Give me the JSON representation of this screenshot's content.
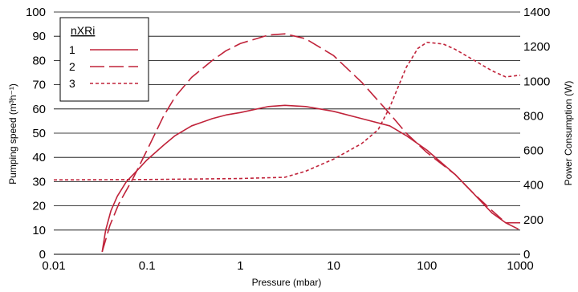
{
  "chart_data": {
    "type": "line",
    "title": "",
    "xlabel": "Pressure (mbar)",
    "ylabel_left": "Pumping speed (m³h⁻¹)",
    "ylabel_right": "Power Consumption (W)",
    "x_scale": "log",
    "xlim": [
      0.01,
      1000
    ],
    "ylim_left": [
      0,
      100
    ],
    "ylim_right": [
      0,
      1400
    ],
    "x_tick_labels": [
      "0.01",
      "0.1",
      "1",
      "10",
      "100",
      "1000"
    ],
    "y_left_tick_labels": [
      "0",
      "10",
      "20",
      "30",
      "40",
      "50",
      "60",
      "70",
      "80",
      "90",
      "100"
    ],
    "y_right_tick_labels": [
      "0",
      "200",
      "400",
      "600",
      "800",
      "1000",
      "1200",
      "1400"
    ],
    "grid": "horizontal",
    "legend": {
      "title": "nXRi",
      "position": "top-left",
      "entries": [
        "1",
        "2",
        "3"
      ]
    },
    "line_color": "#c0233a",
    "series": [
      {
        "name": "1",
        "style": "solid",
        "axis": "left",
        "points": [
          [
            0.033,
            1
          ],
          [
            0.036,
            10
          ],
          [
            0.041,
            18
          ],
          [
            0.048,
            24
          ],
          [
            0.06,
            30
          ],
          [
            0.08,
            35
          ],
          [
            0.1,
            39
          ],
          [
            0.15,
            45
          ],
          [
            0.2,
            49
          ],
          [
            0.3,
            53
          ],
          [
            0.5,
            56
          ],
          [
            0.7,
            57.5
          ],
          [
            1,
            58.5
          ],
          [
            2,
            61
          ],
          [
            3,
            61.5
          ],
          [
            5,
            61
          ],
          [
            10,
            59
          ],
          [
            20,
            56
          ],
          [
            40,
            53
          ],
          [
            60,
            49
          ],
          [
            100,
            43
          ],
          [
            200,
            33
          ],
          [
            300,
            26
          ],
          [
            500,
            17
          ],
          [
            700,
            13
          ],
          [
            1000,
            13
          ]
        ]
      },
      {
        "name": "2",
        "style": "dashed",
        "axis": "left",
        "points": [
          [
            0.033,
            1
          ],
          [
            0.04,
            12
          ],
          [
            0.05,
            21
          ],
          [
            0.07,
            31
          ],
          [
            0.1,
            43
          ],
          [
            0.15,
            57
          ],
          [
            0.2,
            65
          ],
          [
            0.3,
            73
          ],
          [
            0.5,
            80
          ],
          [
            0.7,
            84
          ],
          [
            1,
            87
          ],
          [
            2,
            90.5
          ],
          [
            3,
            91
          ],
          [
            5,
            89
          ],
          [
            10,
            82
          ],
          [
            20,
            71
          ],
          [
            40,
            58
          ],
          [
            60,
            50
          ],
          [
            100,
            42
          ],
          [
            200,
            33
          ],
          [
            300,
            26
          ],
          [
            500,
            18
          ],
          [
            700,
            13
          ],
          [
            1000,
            10
          ]
        ]
      },
      {
        "name": "3",
        "style": "dotted",
        "axis": "right",
        "points": [
          [
            0.01,
            430
          ],
          [
            0.1,
            432
          ],
          [
            1,
            438
          ],
          [
            3,
            445
          ],
          [
            5,
            480
          ],
          [
            10,
            550
          ],
          [
            20,
            640
          ],
          [
            30,
            720
          ],
          [
            40,
            850
          ],
          [
            60,
            1080
          ],
          [
            80,
            1190
          ],
          [
            100,
            1225
          ],
          [
            150,
            1215
          ],
          [
            200,
            1185
          ],
          [
            300,
            1130
          ],
          [
            500,
            1060
          ],
          [
            700,
            1025
          ],
          [
            1000,
            1035
          ]
        ]
      }
    ]
  }
}
